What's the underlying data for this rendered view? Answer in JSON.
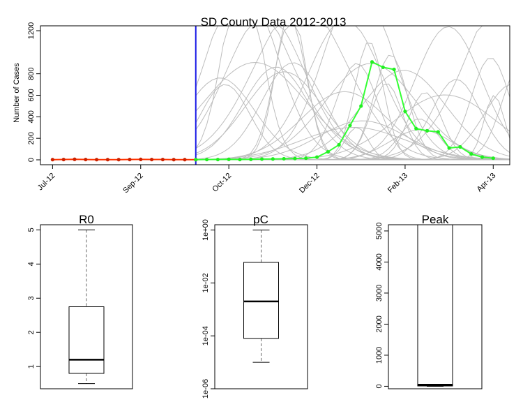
{
  "chart_data": [
    {
      "type": "line",
      "title": "SD County Data 2012-2013",
      "ylabel": "Number of Cases",
      "xlabel": "",
      "ylim": [
        0,
        1200
      ],
      "yticks": [
        0,
        200,
        400,
        600,
        800,
        1200
      ],
      "x_tick_labels": [
        "Jul-12",
        "Sep-12",
        "Oct-12",
        "Dec-12",
        "Feb-13",
        "Apr-13"
      ],
      "x_tick_weeks": [
        0,
        8,
        16,
        24,
        32,
        40
      ],
      "x_unit": "week index from Jul-12",
      "grid": false,
      "colors": {
        "fitted": "#ff3300",
        "forecast": "#33ff33",
        "fitted_marker": "#cc2200",
        "forecast_marker": "#22ee22",
        "simulation": "#bdbdbd",
        "cutoff_line": "#1a1ae6"
      },
      "cutoff_week": 13,
      "series": [
        {
          "role": "observed-fitted",
          "x": [
            0,
            1,
            2,
            3,
            4,
            5,
            6,
            7,
            8,
            9,
            10,
            11,
            12,
            13
          ],
          "values": [
            2,
            3,
            5,
            3,
            2,
            2,
            2,
            3,
            4,
            3,
            3,
            2,
            2,
            2
          ]
        },
        {
          "role": "observed-forecast",
          "x": [
            13,
            14,
            15,
            16,
            17,
            18,
            19,
            20,
            21,
            22,
            23,
            24,
            25,
            26,
            27,
            28,
            29,
            30,
            31,
            32,
            33,
            34,
            35,
            36,
            37,
            38,
            39,
            40
          ],
          "values": [
            2,
            3,
            3,
            5,
            3,
            5,
            7,
            8,
            10,
            12,
            15,
            25,
            75,
            140,
            320,
            500,
            910,
            860,
            840,
            450,
            290,
            270,
            260,
            110,
            120,
            55,
            25,
            15
          ]
        }
      ]
    },
    {
      "type": "box",
      "title": "R0",
      "yscale": "linear",
      "yticks": [
        1,
        2,
        3,
        4,
        5
      ],
      "ylim": [
        0.35,
        5.15
      ],
      "box": {
        "whisker_low": 0.5,
        "q1": 0.8,
        "median": 1.2,
        "q3": 2.75,
        "whisker_high": 5.0
      }
    },
    {
      "type": "box",
      "title": "pC",
      "yscale": "log",
      "yticks": [
        "1e-06",
        "1e-04",
        "1e-02",
        "1e+00"
      ],
      "ylim_log10": [
        -6.0,
        0.2
      ],
      "box": {
        "whisker_low": "1e-05",
        "q1": "8e-05",
        "median": "2e-03",
        "q3": "6e-02",
        "whisker_high": "1e+00"
      }
    },
    {
      "type": "box",
      "title": "Peak",
      "yscale": "linear",
      "yticks": [
        0,
        1000,
        2000,
        3000,
        4000,
        5000
      ],
      "ylim": [
        -80,
        5200
      ],
      "box": {
        "whisker_low": 0,
        "q1": 10,
        "median": 50,
        "q3": 5200,
        "whisker_high": 5200
      }
    }
  ]
}
